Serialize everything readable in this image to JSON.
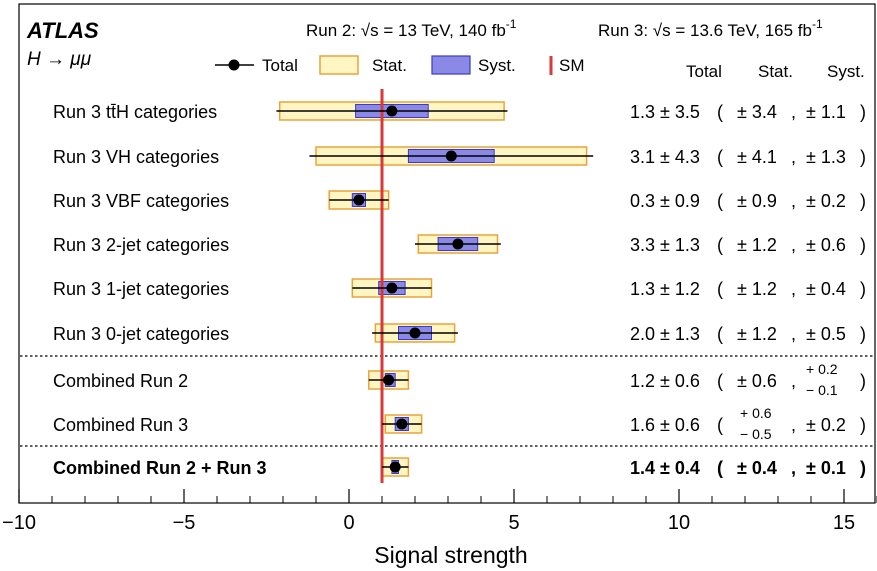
{
  "header": {
    "experiment": "ATLAS",
    "process": "H → μμ",
    "run2_label": "Run 2: √s = 13 TeV, 140 fb",
    "run2_sup": "-1",
    "run3_label": "Run 3: √s = 13.6 TeV, 165 fb",
    "run3_sup": "-1"
  },
  "legend": {
    "total": "Total",
    "stat": "Stat.",
    "syst": "Syst.",
    "sm": "SM"
  },
  "column_headers": {
    "total": "Total",
    "stat": "Stat.",
    "syst": "Syst."
  },
  "colors": {
    "stat_fill": "#fff6c4",
    "stat_border": "#e8a33a",
    "syst_fill": "#8a8ae6",
    "syst_border": "#3b3bc4",
    "sm_line": "#d63a3a"
  },
  "chart_data": {
    "type": "forest",
    "xlabel": "Signal strength",
    "xlim": [
      -10,
      16
    ],
    "xticks": [
      -10,
      -5,
      0,
      5,
      10,
      15
    ],
    "xtick_labels": [
      "−10",
      "−5",
      "0",
      "5",
      "10",
      "15"
    ],
    "sm_value": 1,
    "categories": [
      {
        "label": "Run 3 tt̄H categories",
        "mu": 1.3,
        "total": [
          3.5,
          3.5
        ],
        "stat": [
          3.4,
          3.4
        ],
        "syst": [
          1.1,
          1.1
        ],
        "total_text": "1.3 ± 3.5",
        "stat_text": "± 3.4",
        "syst_text": "± 1.1",
        "bold": false
      },
      {
        "label": "Run 3 VH categories",
        "mu": 3.1,
        "total": [
          4.3,
          4.3
        ],
        "stat": [
          4.1,
          4.1
        ],
        "syst": [
          1.3,
          1.3
        ],
        "total_text": "3.1 ± 4.3",
        "stat_text": "± 4.1",
        "syst_text": "± 1.3",
        "bold": false
      },
      {
        "label": "Run 3 VBF categories",
        "mu": 0.3,
        "total": [
          0.9,
          0.9
        ],
        "stat": [
          0.9,
          0.9
        ],
        "syst": [
          0.2,
          0.2
        ],
        "total_text": "0.3 ± 0.9",
        "stat_text": "± 0.9",
        "syst_text": "± 0.2",
        "bold": false
      },
      {
        "label": "Run 3 2-jet categories",
        "mu": 3.3,
        "total": [
          1.3,
          1.3
        ],
        "stat": [
          1.2,
          1.2
        ],
        "syst": [
          0.6,
          0.6
        ],
        "total_text": "3.3 ± 1.3",
        "stat_text": "± 1.2",
        "syst_text": "± 0.6",
        "bold": false
      },
      {
        "label": "Run 3 1-jet categories",
        "mu": 1.3,
        "total": [
          1.2,
          1.2
        ],
        "stat": [
          1.2,
          1.2
        ],
        "syst": [
          0.4,
          0.4
        ],
        "total_text": "1.3 ± 1.2",
        "stat_text": "± 1.2",
        "syst_text": "± 0.4",
        "bold": false
      },
      {
        "label": "Run 3 0-jet categories",
        "mu": 2.0,
        "total": [
          1.3,
          1.3
        ],
        "stat": [
          1.2,
          1.2
        ],
        "syst": [
          0.5,
          0.5
        ],
        "total_text": "2.0 ± 1.3",
        "stat_text": "± 1.2",
        "syst_text": "± 0.5",
        "bold": false
      },
      {
        "label": "Combined Run 2",
        "mu": 1.2,
        "total": [
          0.6,
          0.6
        ],
        "stat": [
          0.6,
          0.6
        ],
        "syst": [
          0.1,
          0.2
        ],
        "total_text": "1.2 ± 0.6",
        "stat_text": "± 0.6",
        "syst_up": "+ 0.2",
        "syst_down": "− 0.1",
        "bold": false
      },
      {
        "label": "Combined Run 3",
        "mu": 1.6,
        "total": [
          0.6,
          0.6
        ],
        "stat": [
          0.5,
          0.6
        ],
        "syst": [
          0.2,
          0.2
        ],
        "total_text": "1.6 ± 0.6",
        "stat_up": "+ 0.6",
        "stat_down": "− 0.5",
        "syst_text": "± 0.2",
        "bold": false
      },
      {
        "label": "Combined Run 2 + Run 3",
        "mu": 1.4,
        "total": [
          0.4,
          0.4
        ],
        "stat": [
          0.4,
          0.4
        ],
        "syst": [
          0.1,
          0.1
        ],
        "total_text": "1.4 ± 0.4",
        "stat_text": "± 0.4",
        "syst_text": "± 0.1",
        "bold": true
      }
    ]
  }
}
